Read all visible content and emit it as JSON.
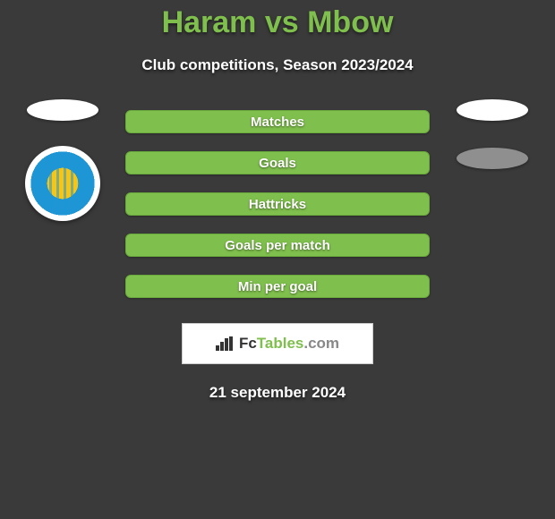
{
  "title": "Haram vs Mbow",
  "subtitle": "Club competitions, Season 2023/2024",
  "stats": {
    "labels": [
      "Matches",
      "Goals",
      "Hattricks",
      "Goals per match",
      "Min per goal"
    ]
  },
  "brand": {
    "fc": "Fc",
    "tables": "Tables",
    "dotcom": ".com"
  },
  "date": "21 september 2024",
  "colors": {
    "accent": "#7fbf4d",
    "background": "#3a3a3a",
    "badge_blue": "#1e96d6",
    "badge_yellow": "#f6c515"
  }
}
